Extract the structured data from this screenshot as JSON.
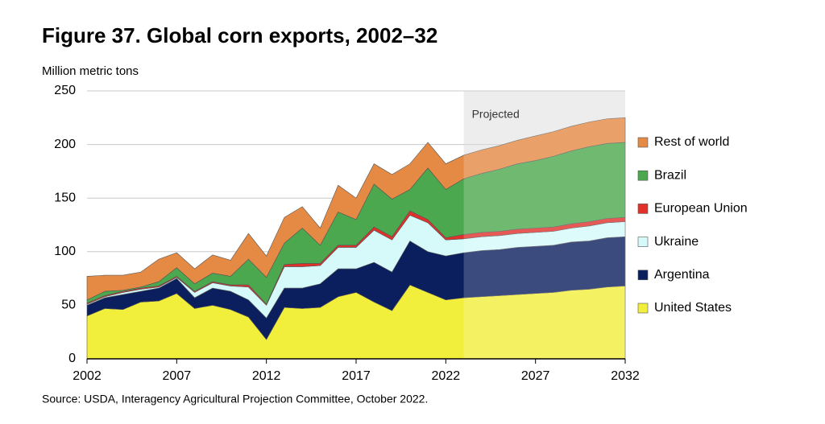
{
  "chart_data": {
    "type": "stacked_area",
    "title": "Figure 37. Global corn exports, 2002–32",
    "y_label": "Million metric tons",
    "source": "Source: USDA, Interagency Agricultural Projection Committee, October 2022.",
    "annotation": {
      "text": "Projected",
      "x_start": 2023
    },
    "x": [
      2002,
      2003,
      2004,
      2005,
      2006,
      2007,
      2008,
      2009,
      2010,
      2011,
      2012,
      2013,
      2014,
      2015,
      2016,
      2017,
      2018,
      2019,
      2020,
      2021,
      2022,
      2023,
      2024,
      2025,
      2026,
      2027,
      2028,
      2029,
      2030,
      2031,
      2032
    ],
    "xlim": [
      2002,
      2032
    ],
    "xticks": [
      2002,
      2007,
      2012,
      2017,
      2022,
      2027,
      2032
    ],
    "ylim": [
      0,
      250
    ],
    "yticks": [
      0,
      50,
      100,
      150,
      200,
      250
    ],
    "grid": true,
    "legend": "right",
    "series": [
      {
        "name": "United States",
        "color": "#f2ee3c",
        "values": [
          40,
          47,
          46,
          53,
          54,
          61,
          47,
          50,
          46,
          39,
          18,
          48,
          47,
          48,
          58,
          62,
          53,
          45,
          69,
          62,
          55,
          57,
          58,
          59,
          60,
          61,
          62,
          64,
          65,
          67,
          68
        ]
      },
      {
        "name": "Argentina",
        "color": "#0b1f5e",
        "values": [
          10,
          10,
          14,
          10,
          12,
          14,
          10,
          16,
          17,
          16,
          20,
          18,
          19,
          22,
          26,
          22,
          37,
          36,
          41,
          38,
          41,
          42,
          43,
          43,
          44,
          44,
          44,
          45,
          45,
          46,
          46
        ]
      },
      {
        "name": "Ukraine",
        "color": "#d6fafa",
        "values": [
          1,
          1,
          2,
          2,
          1,
          1,
          5,
          5,
          5,
          12,
          12,
          20,
          20,
          17,
          20,
          20,
          30,
          30,
          24,
          27,
          15,
          13,
          13,
          13,
          13,
          13,
          13,
          13,
          14,
          14,
          14
        ]
      },
      {
        "name": "European Union",
        "color": "#e2302a",
        "values": [
          1,
          1,
          1,
          1,
          1,
          1,
          1,
          1,
          1,
          2,
          1,
          2,
          3,
          2,
          2,
          2,
          3,
          3,
          4,
          3,
          2,
          4,
          4,
          4,
          4,
          4,
          4,
          4,
          4,
          4,
          4
        ]
      },
      {
        "name": "Brazil",
        "color": "#4ba84e",
        "values": [
          3,
          4,
          1,
          1,
          4,
          8,
          7,
          8,
          8,
          24,
          25,
          20,
          33,
          17,
          31,
          24,
          40,
          35,
          20,
          48,
          45,
          52,
          55,
          58,
          61,
          63,
          66,
          68,
          70,
          70,
          70
        ]
      },
      {
        "name": "Rest of world",
        "color": "#e48a44",
        "values": [
          22,
          15,
          14,
          14,
          21,
          14,
          14,
          17,
          15,
          24,
          20,
          24,
          20,
          16,
          25,
          20,
          19,
          23,
          24,
          24,
          24,
          22,
          22,
          22,
          22,
          23,
          23,
          23,
          23,
          23,
          23
        ]
      }
    ]
  }
}
